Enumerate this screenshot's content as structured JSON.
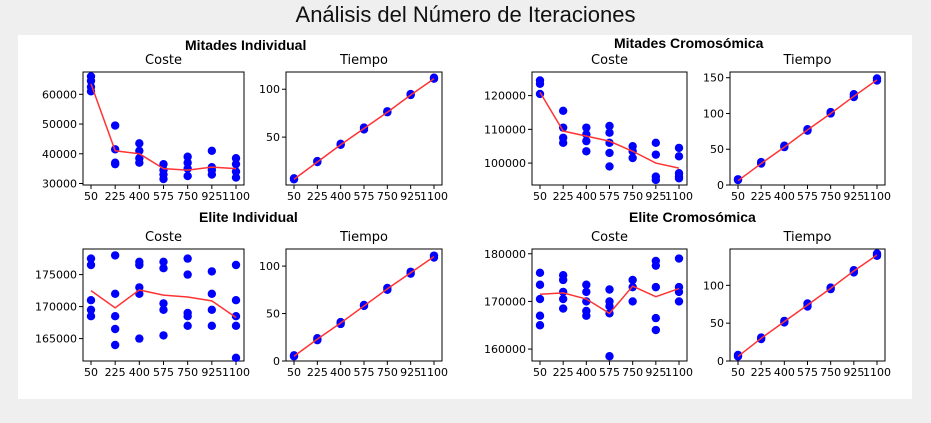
{
  "figure": {
    "title": "Análisis del Número de Iteraciones",
    "groups": [
      "Mitades Individual",
      "Mitades Cromosómica",
      "Elite Individual",
      "Elite Cromosómica"
    ]
  },
  "colors": {
    "points": "#0000ff",
    "line": "#ff3333",
    "axis": "#000000"
  },
  "chart_data": [
    {
      "type": "scatter",
      "group": "Mitades Individual",
      "title": "Coste",
      "x_categories": [
        "50",
        "225",
        "400",
        "575",
        "750",
        "925",
        "1100"
      ],
      "ylim": [
        29500,
        67500
      ],
      "yticks": [
        30000,
        40000,
        50000,
        60000
      ],
      "points": [
        [
          50,
          61000
        ],
        [
          50,
          62500
        ],
        [
          50,
          64500
        ],
        [
          50,
          66000
        ],
        [
          225,
          49500
        ],
        [
          225,
          41500
        ],
        [
          225,
          37000
        ],
        [
          225,
          36500
        ],
        [
          400,
          43500
        ],
        [
          400,
          41000
        ],
        [
          400,
          38500
        ],
        [
          400,
          37000
        ],
        [
          575,
          36500
        ],
        [
          575,
          34500
        ],
        [
          575,
          33000
        ],
        [
          575,
          31500
        ],
        [
          750,
          39000
        ],
        [
          750,
          37000
        ],
        [
          750,
          35000
        ],
        [
          750,
          32500
        ],
        [
          925,
          41000
        ],
        [
          925,
          35500
        ],
        [
          925,
          34500
        ],
        [
          925,
          33000
        ],
        [
          1100,
          38500
        ],
        [
          1100,
          36500
        ],
        [
          1100,
          34000
        ],
        [
          1100,
          32000
        ]
      ],
      "trend": [
        [
          50,
          63500
        ],
        [
          225,
          41000
        ],
        [
          400,
          40000
        ],
        [
          575,
          35000
        ],
        [
          750,
          34500
        ],
        [
          925,
          35500
        ],
        [
          1100,
          35000
        ]
      ]
    },
    {
      "type": "scatter",
      "group": "Mitades Individual",
      "title": "Tiempo",
      "x_categories": [
        "50",
        "225",
        "400",
        "575",
        "750",
        "925",
        "1100"
      ],
      "ylim": [
        0,
        118
      ],
      "yticks": [
        50,
        100
      ],
      "points": [
        [
          50,
          6
        ],
        [
          50,
          7
        ],
        [
          225,
          24
        ],
        [
          225,
          25
        ],
        [
          400,
          42
        ],
        [
          400,
          43
        ],
        [
          575,
          58
        ],
        [
          575,
          60
        ],
        [
          750,
          76
        ],
        [
          750,
          77
        ],
        [
          925,
          94
        ],
        [
          925,
          95
        ],
        [
          1100,
          111
        ],
        [
          1100,
          112
        ]
      ],
      "trend": [
        [
          50,
          6
        ],
        [
          225,
          24
        ],
        [
          400,
          42
        ],
        [
          575,
          59
        ],
        [
          750,
          76
        ],
        [
          925,
          94
        ],
        [
          1100,
          111
        ]
      ]
    },
    {
      "type": "scatter",
      "group": "Mitades Cromosómica",
      "title": "Coste",
      "x_categories": [
        "50",
        "225",
        "400",
        "575",
        "750",
        "925",
        "1100"
      ],
      "ylim": [
        93500,
        127000
      ],
      "yticks": [
        100000,
        110000,
        120000
      ],
      "points": [
        [
          50,
          124500
        ],
        [
          50,
          123500
        ],
        [
          50,
          120500
        ],
        [
          225,
          115500
        ],
        [
          225,
          110500
        ],
        [
          225,
          107500
        ],
        [
          225,
          106000
        ],
        [
          400,
          110500
        ],
        [
          400,
          108500
        ],
        [
          400,
          106500
        ],
        [
          400,
          103500
        ],
        [
          575,
          111000
        ],
        [
          575,
          109000
        ],
        [
          575,
          106000
        ],
        [
          575,
          103000
        ],
        [
          575,
          99000
        ],
        [
          750,
          105000
        ],
        [
          750,
          103500
        ],
        [
          750,
          101500
        ],
        [
          925,
          106000
        ],
        [
          925,
          102500
        ],
        [
          925,
          96000
        ],
        [
          925,
          95000
        ],
        [
          1100,
          104500
        ],
        [
          1100,
          102000
        ],
        [
          1100,
          97000
        ],
        [
          1100,
          96000
        ],
        [
          1100,
          95500
        ]
      ],
      "trend": [
        [
          50,
          121000
        ],
        [
          225,
          109500
        ],
        [
          400,
          108000
        ],
        [
          575,
          106500
        ],
        [
          750,
          103500
        ],
        [
          925,
          100000
        ],
        [
          1100,
          98500
        ]
      ]
    },
    {
      "type": "scatter",
      "group": "Mitades Cromosómica",
      "title": "Tiempo",
      "x_categories": [
        "50",
        "225",
        "400",
        "575",
        "750",
        "925",
        "1100"
      ],
      "ylim": [
        0,
        158
      ],
      "yticks": [
        0,
        50,
        100,
        150
      ],
      "points": [
        [
          50,
          7
        ],
        [
          50,
          8
        ],
        [
          225,
          30
        ],
        [
          225,
          32
        ],
        [
          400,
          53
        ],
        [
          400,
          55
        ],
        [
          575,
          76
        ],
        [
          575,
          78
        ],
        [
          750,
          100
        ],
        [
          750,
          102
        ],
        [
          925,
          123
        ],
        [
          925,
          127
        ],
        [
          1100,
          146
        ],
        [
          1100,
          149
        ]
      ],
      "trend": [
        [
          50,
          6
        ],
        [
          225,
          30
        ],
        [
          400,
          53
        ],
        [
          575,
          77
        ],
        [
          750,
          100
        ],
        [
          925,
          124
        ],
        [
          1100,
          147
        ]
      ]
    },
    {
      "type": "scatter",
      "group": "Elite Individual",
      "title": "Coste",
      "x_categories": [
        "50",
        "225",
        "400",
        "575",
        "750",
        "925",
        "1100"
      ],
      "ylim": [
        161500,
        179000
      ],
      "yticks": [
        165000,
        170000,
        175000
      ],
      "points": [
        [
          50,
          177500
        ],
        [
          50,
          176500
        ],
        [
          50,
          171000
        ],
        [
          50,
          169500
        ],
        [
          50,
          168500
        ],
        [
          225,
          178000
        ],
        [
          225,
          172000
        ],
        [
          225,
          168500
        ],
        [
          225,
          166500
        ],
        [
          225,
          164000
        ],
        [
          400,
          177000
        ],
        [
          400,
          176500
        ],
        [
          400,
          173000
        ],
        [
          400,
          172000
        ],
        [
          400,
          165000
        ],
        [
          575,
          177000
        ],
        [
          575,
          176000
        ],
        [
          575,
          170500
        ],
        [
          575,
          169500
        ],
        [
          575,
          165500
        ],
        [
          750,
          177500
        ],
        [
          750,
          175000
        ],
        [
          750,
          169000
        ],
        [
          750,
          168500
        ],
        [
          750,
          167000
        ],
        [
          925,
          175500
        ],
        [
          925,
          172000
        ],
        [
          925,
          169500
        ],
        [
          925,
          167000
        ],
        [
          1100,
          176500
        ],
        [
          1100,
          171000
        ],
        [
          1100,
          168500
        ],
        [
          1100,
          167000
        ],
        [
          1100,
          162000
        ]
      ],
      "trend": [
        [
          50,
          172500
        ],
        [
          225,
          169800
        ],
        [
          400,
          172600
        ],
        [
          575,
          171800
        ],
        [
          750,
          171500
        ],
        [
          925,
          170900
        ],
        [
          1100,
          168300
        ]
      ]
    },
    {
      "type": "scatter",
      "group": "Elite Individual",
      "title": "Tiempo",
      "x_categories": [
        "50",
        "225",
        "400",
        "575",
        "750",
        "925",
        "1100"
      ],
      "ylim": [
        0,
        118
      ],
      "yticks": [
        0,
        50,
        100
      ],
      "points": [
        [
          50,
          5
        ],
        [
          50,
          6
        ],
        [
          225,
          22
        ],
        [
          225,
          24
        ],
        [
          400,
          39
        ],
        [
          400,
          41
        ],
        [
          575,
          58
        ],
        [
          575,
          59
        ],
        [
          750,
          75
        ],
        [
          750,
          77
        ],
        [
          925,
          92
        ],
        [
          925,
          94
        ],
        [
          1100,
          109
        ],
        [
          1100,
          111
        ]
      ],
      "trend": [
        [
          50,
          5
        ],
        [
          225,
          23
        ],
        [
          400,
          40
        ],
        [
          575,
          58
        ],
        [
          750,
          76
        ],
        [
          925,
          93
        ],
        [
          1100,
          110
        ]
      ]
    },
    {
      "type": "scatter",
      "group": "Elite Cromosómica",
      "title": "Coste",
      "x_categories": [
        "50",
        "225",
        "400",
        "575",
        "750",
        "925",
        "1100"
      ],
      "ylim": [
        157500,
        181000
      ],
      "yticks": [
        160000,
        170000,
        180000
      ],
      "points": [
        [
          50,
          176000
        ],
        [
          50,
          173500
        ],
        [
          50,
          170500
        ],
        [
          50,
          167000
        ],
        [
          50,
          165000
        ],
        [
          225,
          175500
        ],
        [
          225,
          174500
        ],
        [
          225,
          172000
        ],
        [
          225,
          170500
        ],
        [
          225,
          168500
        ],
        [
          400,
          173500
        ],
        [
          400,
          172000
        ],
        [
          400,
          170000
        ],
        [
          400,
          168000
        ],
        [
          400,
          167000
        ],
        [
          575,
          172500
        ],
        [
          575,
          170000
        ],
        [
          575,
          169000
        ],
        [
          575,
          167500
        ],
        [
          575,
          158500
        ],
        [
          750,
          174500
        ],
        [
          750,
          173000
        ],
        [
          750,
          170000
        ],
        [
          925,
          178500
        ],
        [
          925,
          177500
        ],
        [
          925,
          173000
        ],
        [
          925,
          166500
        ],
        [
          925,
          164000
        ],
        [
          1100,
          179000
        ],
        [
          1100,
          173000
        ],
        [
          1100,
          172000
        ],
        [
          1100,
          170000
        ]
      ],
      "trend": [
        [
          50,
          171500
        ],
        [
          225,
          171800
        ],
        [
          400,
          170500
        ],
        [
          575,
          167500
        ],
        [
          750,
          173200
        ],
        [
          925,
          171000
        ],
        [
          1100,
          172700
        ]
      ]
    },
    {
      "type": "scatter",
      "group": "Elite Cromosómica",
      "title": "Tiempo",
      "x_categories": [
        "50",
        "225",
        "400",
        "575",
        "750",
        "925",
        "1100"
      ],
      "ylim": [
        0,
        148
      ],
      "yticks": [
        0,
        50,
        100
      ],
      "points": [
        [
          50,
          6
        ],
        [
          50,
          8
        ],
        [
          225,
          29
        ],
        [
          225,
          31
        ],
        [
          400,
          51
        ],
        [
          400,
          53
        ],
        [
          575,
          72
        ],
        [
          575,
          76
        ],
        [
          750,
          95
        ],
        [
          750,
          97
        ],
        [
          925,
          117
        ],
        [
          925,
          120
        ],
        [
          1100,
          139
        ],
        [
          1100,
          142
        ]
      ],
      "trend": [
        [
          50,
          6
        ],
        [
          225,
          30
        ],
        [
          400,
          52
        ],
        [
          575,
          74
        ],
        [
          750,
          96
        ],
        [
          925,
          119
        ],
        [
          1100,
          140
        ]
      ]
    }
  ]
}
